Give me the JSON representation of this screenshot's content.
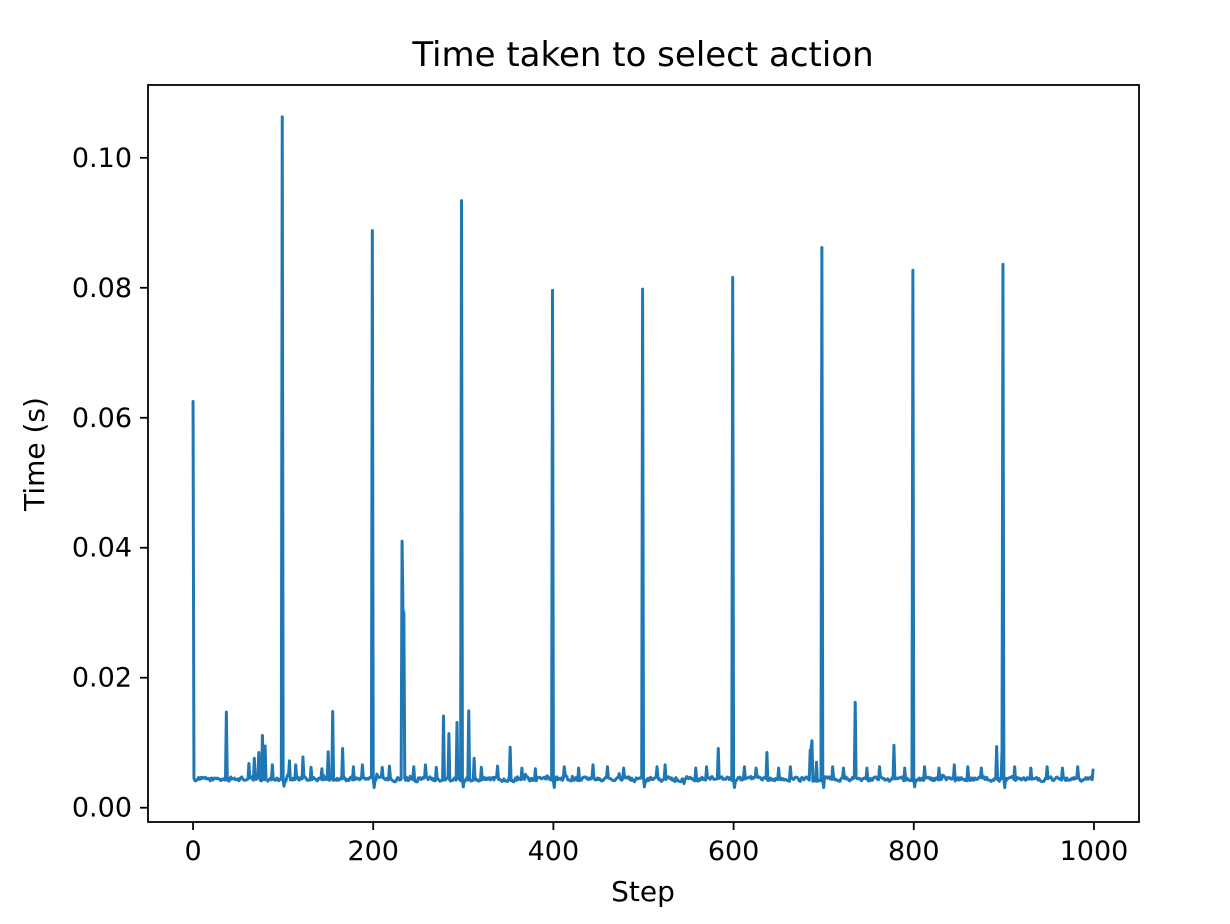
{
  "chart_data": {
    "type": "line",
    "title": "Time taken to select action",
    "xlabel": "Step",
    "ylabel": "Time (s)",
    "xlim": [
      -50,
      1050
    ],
    "ylim": [
      -0.0022,
      0.1112
    ],
    "grid": false,
    "legend": null,
    "line_color": "#1f77b4",
    "axis_color": "#000000",
    "background_color": "#ffffff",
    "xticks": [
      {
        "value": 0,
        "label": "0"
      },
      {
        "value": 200,
        "label": "200"
      },
      {
        "value": 400,
        "label": "400"
      },
      {
        "value": 600,
        "label": "600"
      },
      {
        "value": 800,
        "label": "800"
      },
      {
        "value": 1000,
        "label": "1000"
      }
    ],
    "yticks": [
      {
        "value": 0.0,
        "label": "0.00"
      },
      {
        "value": 0.02,
        "label": "0.02"
      },
      {
        "value": 0.04,
        "label": "0.04"
      },
      {
        "value": 0.06,
        "label": "0.06"
      },
      {
        "value": 0.08,
        "label": "0.08"
      },
      {
        "value": 0.1,
        "label": "0.10"
      }
    ],
    "n_steps": 1000,
    "baseline": 0.0044,
    "noise_amplitude": 0.0005,
    "noise_seed": 1234,
    "spikes": [
      [
        0,
        0.0625
      ],
      [
        37,
        0.0147
      ],
      [
        62,
        0.0068
      ],
      [
        68,
        0.0076
      ],
      [
        73,
        0.0085
      ],
      [
        77,
        0.0111
      ],
      [
        80,
        0.0095
      ],
      [
        88,
        0.0066
      ],
      [
        99,
        0.1063
      ],
      [
        101,
        0.0033
      ],
      [
        107,
        0.0072
      ],
      [
        114,
        0.0066
      ],
      [
        122,
        0.0078
      ],
      [
        131,
        0.0062
      ],
      [
        143,
        0.006
      ],
      [
        150,
        0.0086
      ],
      [
        155,
        0.0148
      ],
      [
        166,
        0.0091
      ],
      [
        178,
        0.0063
      ],
      [
        188,
        0.0066
      ],
      [
        199,
        0.0888
      ],
      [
        201,
        0.0031
      ],
      [
        210,
        0.0062
      ],
      [
        218,
        0.0064
      ],
      [
        232,
        0.041
      ],
      [
        233,
        0.0304
      ],
      [
        234,
        0.03
      ],
      [
        245,
        0.0063
      ],
      [
        258,
        0.0066
      ],
      [
        270,
        0.0062
      ],
      [
        278,
        0.0141
      ],
      [
        284,
        0.0114
      ],
      [
        293,
        0.0131
      ],
      [
        298,
        0.0934
      ],
      [
        300,
        0.0032
      ],
      [
        306,
        0.0149
      ],
      [
        312,
        0.0076
      ],
      [
        320,
        0.0062
      ],
      [
        338,
        0.0064
      ],
      [
        352,
        0.0093
      ],
      [
        365,
        0.0061
      ],
      [
        380,
        0.006
      ],
      [
        399,
        0.0796
      ],
      [
        401,
        0.0031
      ],
      [
        412,
        0.0063
      ],
      [
        428,
        0.0061
      ],
      [
        444,
        0.0066
      ],
      [
        460,
        0.0063
      ],
      [
        478,
        0.0061
      ],
      [
        499,
        0.0798
      ],
      [
        501,
        0.0032
      ],
      [
        515,
        0.0063
      ],
      [
        524,
        0.0066
      ],
      [
        545,
        0.0037
      ],
      [
        558,
        0.0061
      ],
      [
        570,
        0.0063
      ],
      [
        583,
        0.0091
      ],
      [
        599,
        0.0816
      ],
      [
        601,
        0.0031
      ],
      [
        612,
        0.0063
      ],
      [
        625,
        0.0061
      ],
      [
        637,
        0.0085
      ],
      [
        650,
        0.0061
      ],
      [
        663,
        0.0063
      ],
      [
        685,
        0.0088
      ],
      [
        686,
        0.009
      ],
      [
        687,
        0.0103
      ],
      [
        692,
        0.007
      ],
      [
        698,
        0.0862
      ],
      [
        700,
        0.0031
      ],
      [
        710,
        0.0063
      ],
      [
        722,
        0.0061
      ],
      [
        735,
        0.0162
      ],
      [
        748,
        0.0061
      ],
      [
        762,
        0.0063
      ],
      [
        778,
        0.0096
      ],
      [
        790,
        0.0061
      ],
      [
        799,
        0.0827
      ],
      [
        801,
        0.0032
      ],
      [
        812,
        0.0063
      ],
      [
        828,
        0.0061
      ],
      [
        845,
        0.0066
      ],
      [
        860,
        0.0063
      ],
      [
        875,
        0.0061
      ],
      [
        892,
        0.0094
      ],
      [
        898,
        0.009
      ],
      [
        899,
        0.0836
      ],
      [
        901,
        0.0031
      ],
      [
        912,
        0.0063
      ],
      [
        930,
        0.0061
      ],
      [
        948,
        0.0063
      ],
      [
        965,
        0.0061
      ],
      [
        982,
        0.0063
      ],
      [
        999,
        0.0058
      ]
    ]
  }
}
